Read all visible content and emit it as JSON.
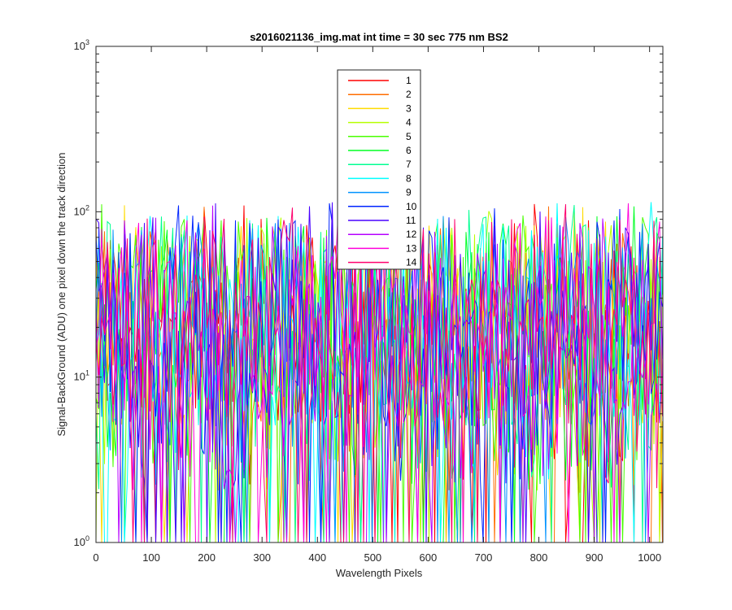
{
  "chart_data": {
    "type": "line",
    "title": "s2016021136_img.mat int time = 30 sec  775 nm BS2",
    "xlabel": "Wavelength Pixels",
    "ylabel": "Signal-BackGround (ADU) one pixel down the track direction",
    "xlim": [
      0,
      1024
    ],
    "ylim": [
      1,
      1000
    ],
    "yscale": "log",
    "xticks": [
      0,
      100,
      200,
      300,
      400,
      500,
      600,
      700,
      800,
      900,
      1000
    ],
    "xtick_labels": [
      "0",
      "100",
      "200",
      "300",
      "400",
      "500",
      "600",
      "700",
      "800",
      "900",
      "1000"
    ],
    "ytick_labels": [
      {
        "base": "10",
        "exp": "0",
        "value": 1
      },
      {
        "base": "10",
        "exp": "1",
        "value": 10
      },
      {
        "base": "10",
        "exp": "2",
        "value": 100
      },
      {
        "base": "10",
        "exp": "3",
        "value": 1000
      }
    ],
    "legend_position": "top-center",
    "series_summary": "14 noisy series over 1024 wavelength pixels; values fluctuate roughly between 1 and 115 ADU (log scale), typical level about 10-40 ADU",
    "series": [
      {
        "name": "1",
        "color": "#ff0000"
      },
      {
        "name": "2",
        "color": "#ff6d00"
      },
      {
        "name": "3",
        "color": "#ffdb00"
      },
      {
        "name": "4",
        "color": "#b6ff00"
      },
      {
        "name": "5",
        "color": "#49ff00"
      },
      {
        "name": "6",
        "color": "#00ff24"
      },
      {
        "name": "7",
        "color": "#00ff92"
      },
      {
        "name": "8",
        "color": "#00ffff"
      },
      {
        "name": "9",
        "color": "#0092ff"
      },
      {
        "name": "10",
        "color": "#0024ff"
      },
      {
        "name": "11",
        "color": "#4900ff"
      },
      {
        "name": "12",
        "color": "#b600ff"
      },
      {
        "name": "13",
        "color": "#ff00db"
      },
      {
        "name": "14",
        "color": "#ff006d"
      }
    ]
  }
}
